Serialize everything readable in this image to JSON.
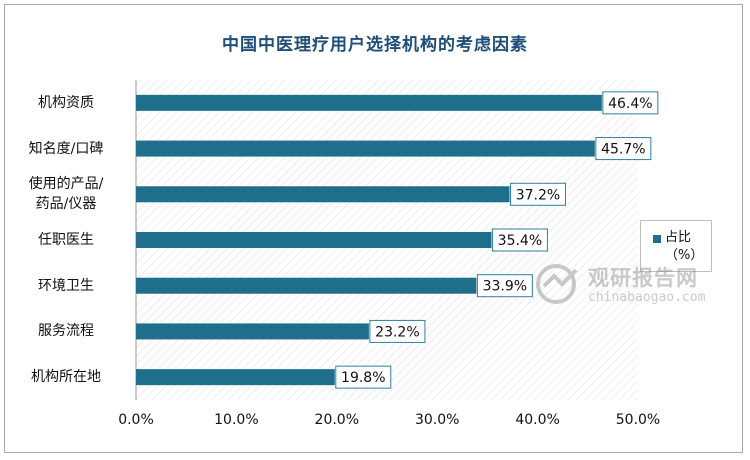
{
  "chart_data": {
    "type": "bar",
    "orientation": "horizontal",
    "title": "中国中医理疗用户选择机构的考虑因素",
    "categories": [
      [
        "机构资质"
      ],
      [
        "知名度/口碑"
      ],
      [
        "使用的产品/",
        "药品/仪器"
      ],
      [
        "任职医生"
      ],
      [
        "环境卫生"
      ],
      [
        "服务流程"
      ],
      [
        "机构所在地"
      ]
    ],
    "series": [
      {
        "name": "占比（%）",
        "values": [
          46.4,
          45.7,
          37.2,
          35.4,
          33.9,
          23.2,
          19.8
        ]
      }
    ],
    "data_labels": [
      "46.4%",
      "45.7%",
      "37.2%",
      "35.4%",
      "33.9%",
      "23.2%",
      "19.8%"
    ],
    "x_ticks": [
      "0.0%",
      "10.0%",
      "20.0%",
      "30.0%",
      "40.0%",
      "50.0%"
    ],
    "xlim": [
      0,
      50
    ],
    "grid": false,
    "legend_position": "right",
    "bar_color": "#1f6e8c"
  },
  "legend": {
    "label": "占比（%）"
  },
  "watermark": {
    "cn": "观研报告网",
    "en": "chinabaogao.com"
  }
}
